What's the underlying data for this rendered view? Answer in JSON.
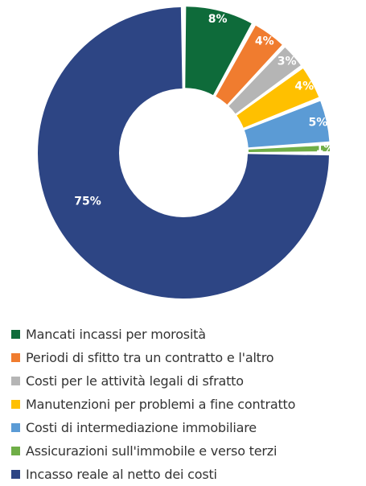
{
  "chart_data": {
    "type": "pie",
    "style": "donut",
    "slices": [
      {
        "label": "Mancati incassi per morosità",
        "value": 8,
        "display": "8%",
        "color": "#0e6b3a"
      },
      {
        "label": "Periodi di sfitto tra un contratto e l'altro",
        "value": 4,
        "display": "4%",
        "color": "#f07c2f"
      },
      {
        "label": "Costi per le attività legali di sfratto",
        "value": 3,
        "display": "3%",
        "color": "#b5b5b5"
      },
      {
        "label": "Manutenzioni per problemi a fine contratto",
        "value": 4,
        "display": "4%",
        "color": "#ffc000"
      },
      {
        "label": "Costi di intermediazione immobiliare",
        "value": 5,
        "display": "5%",
        "color": "#5b9bd5"
      },
      {
        "label": "Assicurazioni sull'immobile e verso terzi",
        "value": 1,
        "display": "1%",
        "color": "#6fae47"
      },
      {
        "label": "Incasso reale al netto dei costi",
        "value": 75,
        "display": "75%",
        "color": "#2d4584"
      }
    ],
    "legend_position": "bottom"
  }
}
